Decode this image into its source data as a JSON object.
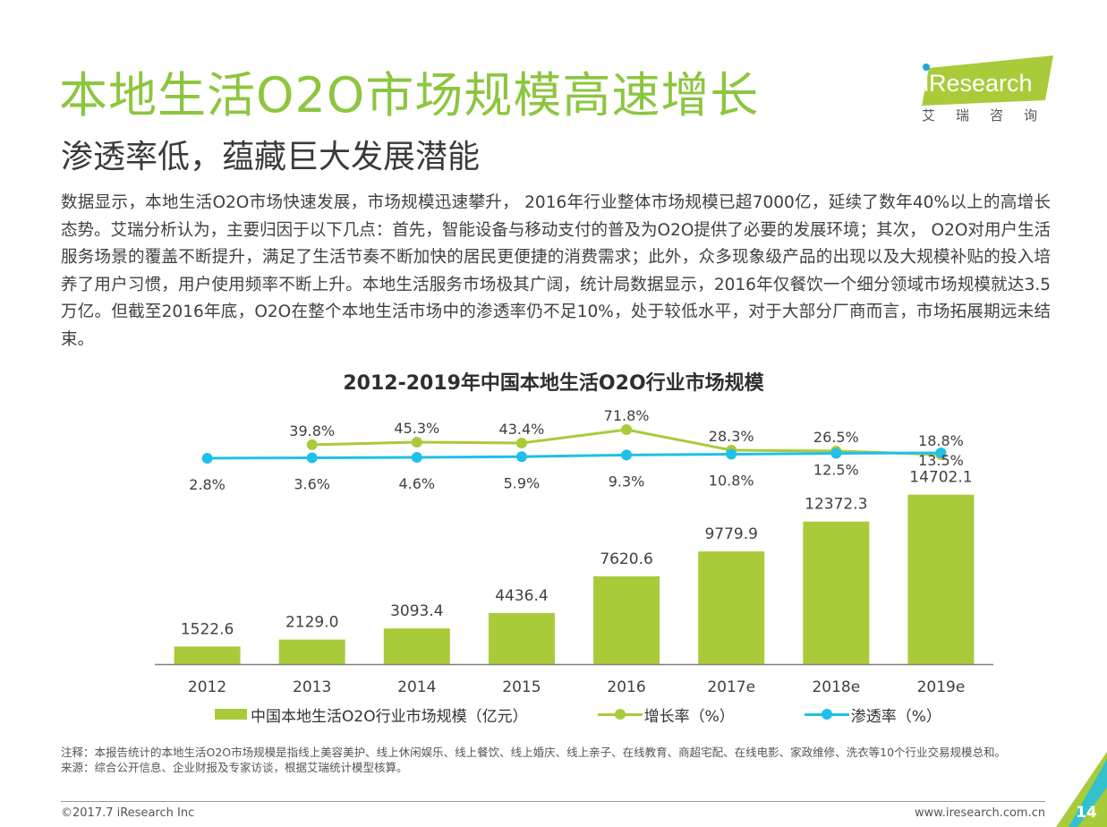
{
  "header": {
    "title": "本地生活O2O市场规模高速增长",
    "subtitle": "渗透率低，蕴藏巨大发展潜能"
  },
  "logo": {
    "brand": "iResearch",
    "brand_cn": "艾瑞咨询"
  },
  "body": {
    "paragraph": "数据显示，本地生活O2O市场快速发展，市场规模迅速攀升， 2016年行业整体市场规模已超7000亿，延续了数年40%以上的高增长态势。艾瑞分析认为，主要归因于以下几点：首先，智能设备与移动支付的普及为O2O提供了必要的发展环境；其次， O2O对用户生活服务场景的覆盖不断提升，满足了生活节奏不断加快的居民更便捷的消费需求；此外，众多现象级产品的出现以及大规模补贴的投入培养了用户习惯，用户使用频率不断上升。本地生活服务市场极其广阔，统计局数据显示，2016年仅餐饮一个细分领域市场规模就达3.5万亿。但截至2016年底，O2O在整个本地生活市场中的渗透率仍不足10%，处于较低水平，对于大部分厂商而言，市场拓展期远未结束。"
  },
  "chart_data": {
    "type": "bar",
    "title": "2012-2019年中国本地生活O2O行业市场规模",
    "categories": [
      "2012",
      "2013",
      "2014",
      "2015",
      "2016",
      "2017e",
      "2018e",
      "2019e"
    ],
    "series": [
      {
        "name": "中国本地生活O2O行业市场规模（亿元）",
        "type": "bar",
        "values": [
          1522.6,
          2129.0,
          3093.4,
          4436.4,
          7620.6,
          9779.9,
          12372.3,
          14702.1
        ],
        "labels": [
          "1522.6",
          "2129.0",
          "3093.4",
          "4436.4",
          "7620.6",
          "9779.9",
          "12372.3",
          "14702.1"
        ]
      },
      {
        "name": "增长率（%）",
        "type": "line",
        "values": [
          null,
          39.8,
          45.3,
          43.4,
          71.8,
          28.3,
          26.5,
          18.8
        ],
        "labels": [
          "",
          "39.8%",
          "45.3%",
          "43.4%",
          "71.8%",
          "28.3%",
          "26.5%",
          "18.8%"
        ]
      },
      {
        "name": "渗透率（%）",
        "type": "line",
        "values": [
          2.8,
          3.6,
          4.6,
          5.9,
          9.3,
          10.8,
          12.5,
          13.5
        ],
        "labels": [
          "2.8%",
          "3.6%",
          "4.6%",
          "5.9%",
          "9.3%",
          "10.8%",
          "12.5%",
          "13.5%"
        ]
      }
    ],
    "ylim": [
      0,
      16000
    ],
    "grid": false,
    "legend": "bottom",
    "colors": {
      "bar": "#a9cb3a",
      "growth": "#a9cb3a",
      "penetration": "#1fc0e8"
    }
  },
  "notes": {
    "note": "注释：本报告统计的本地生活O2O市场规模是指线上美容美护、线上休闲娱乐、线上餐饮、线上婚庆、线上亲子、在线教育、商超宅配、在线电影、家政维修、洗衣等10个行业交易规模总和。",
    "source": "来源：综合公开信息、企业财报及专家访谈，根据艾瑞统计模型核算。"
  },
  "footer": {
    "copyright": "©2017.7 iResearch Inc",
    "url": "www.iresearch.com.cn",
    "page_number": "14"
  }
}
